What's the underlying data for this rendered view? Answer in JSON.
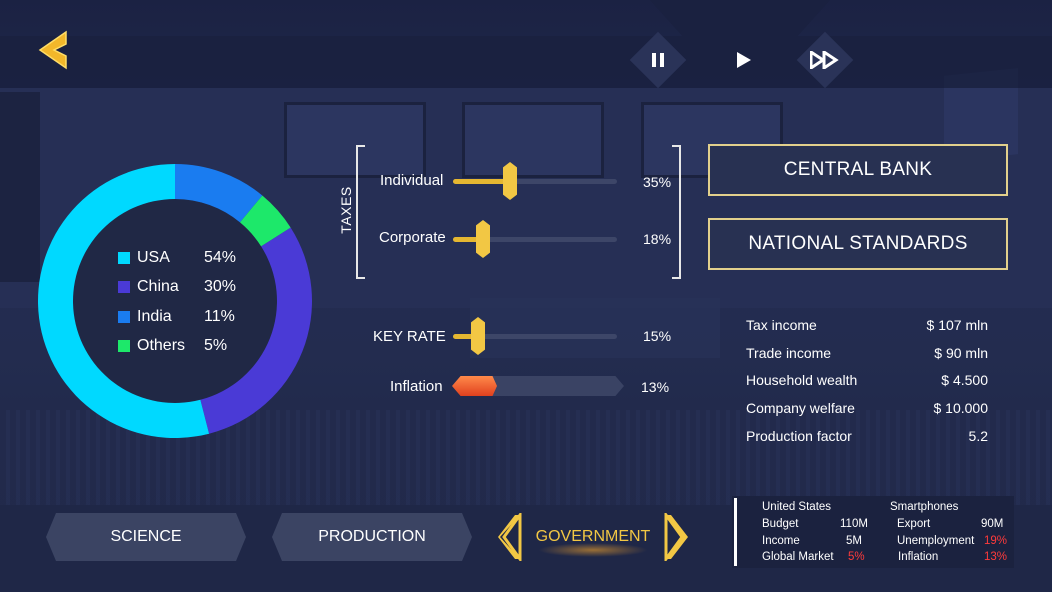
{
  "controls": {
    "back": "chevron-left-icon",
    "pause": "pause-icon",
    "play": "play-icon",
    "fast_forward": "fast-forward-icon"
  },
  "donut": {
    "items": [
      {
        "label": "USA",
        "value_label": "54%",
        "value": 54,
        "color": "#00d9ff"
      },
      {
        "label": "China",
        "value_label": "30%",
        "value": 30,
        "color": "#4a3ad6"
      },
      {
        "label": "India",
        "value_label": "11%",
        "value": 11,
        "color": "#1a7cf0"
      },
      {
        "label": "Others",
        "value_label": "5%",
        "value": 5,
        "color": "#1de86a"
      }
    ]
  },
  "taxes": {
    "label": "TAXES",
    "individual": {
      "label": "Individual",
      "value_label": "35%",
      "value": 35
    },
    "corporate": {
      "label": "Corporate",
      "value_label": "18%",
      "value": 18
    }
  },
  "key_rate": {
    "label": "KEY RATE",
    "value_label": "15%",
    "value": 15
  },
  "inflation": {
    "label": "Inflation",
    "value_label": "13%",
    "value": 13
  },
  "buttons": {
    "central_bank": "CENTRAL BANK",
    "national_standards": "NATIONAL STANDARDS"
  },
  "stats": [
    {
      "label": "Tax income",
      "value": "$ 107 mln"
    },
    {
      "label": "Trade income",
      "value": "$ 90 mln"
    },
    {
      "label": "Household wealth",
      "value": "$ 4.500"
    },
    {
      "label": "Company welfare",
      "value": "$ 10.000"
    },
    {
      "label": "Production factor",
      "value": "5.2"
    }
  ],
  "tabs": {
    "science": "SCIENCE",
    "production": "PRODUCTION",
    "government": "GOVERNMENT"
  },
  "info": {
    "country": "United States",
    "product": "Smartphones",
    "budget_label": "Budget",
    "budget_value": "110M",
    "income_label": "Income",
    "income_value": "5M",
    "market_label": "Global Market",
    "market_value": "5%",
    "export_label": "Export",
    "export_value": "90M",
    "unemployment_label": "Unemployment",
    "unemployment_value": "19%",
    "inflation_label": "Inflation",
    "inflation_value": "13%"
  },
  "colors": {
    "accent": "#f2c744",
    "frame": "#e2d08c",
    "alert": "#ff3b3b"
  }
}
